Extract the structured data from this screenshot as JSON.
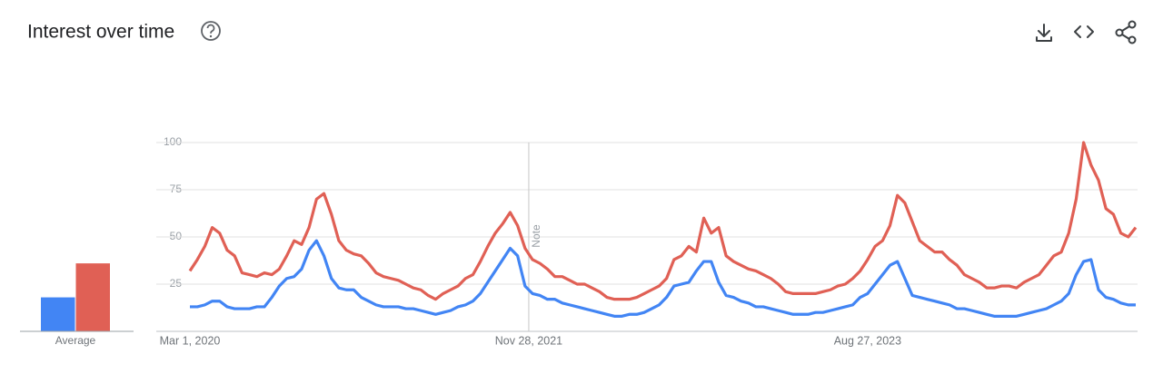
{
  "header": {
    "title": "Interest over time"
  },
  "chart_data": [
    {
      "type": "bar",
      "xlabel": "Average",
      "ylim": [
        0,
        100
      ],
      "series": [
        {
          "color": "#4285f4",
          "values": [
            18
          ]
        },
        {
          "color": "#e06055",
          "values": [
            36
          ]
        }
      ]
    },
    {
      "type": "line",
      "ylim": [
        0,
        100
      ],
      "yticks": [
        25,
        50,
        75,
        100
      ],
      "grid": true,
      "xticks": [
        {
          "value": "2020-03-01",
          "label": "Mar 1, 2020"
        },
        {
          "value": "2021-11-28",
          "label": "Nov 28, 2021"
        },
        {
          "value": "2023-08-27",
          "label": "Aug 27, 2023"
        }
      ],
      "annotations": [
        {
          "x": "2021-11-28",
          "label": "Note"
        }
      ],
      "x": [
        "2020-03-01",
        "2020-03-15",
        "2020-03-29",
        "2020-04-12",
        "2020-04-26",
        "2020-05-10",
        "2020-05-24",
        "2020-06-07",
        "2020-06-21",
        "2020-07-05",
        "2020-07-19",
        "2020-08-02",
        "2020-08-16",
        "2020-08-30",
        "2020-09-13",
        "2020-09-27",
        "2020-10-11",
        "2020-10-25",
        "2020-11-08",
        "2020-11-22",
        "2020-12-06",
        "2020-12-20",
        "2021-01-03",
        "2021-01-17",
        "2021-01-31",
        "2021-02-14",
        "2021-02-28",
        "2021-03-14",
        "2021-03-28",
        "2021-04-11",
        "2021-04-25",
        "2021-05-09",
        "2021-05-23",
        "2021-06-06",
        "2021-06-20",
        "2021-07-04",
        "2021-07-18",
        "2021-08-01",
        "2021-08-15",
        "2021-08-29",
        "2021-09-12",
        "2021-09-26",
        "2021-10-10",
        "2021-10-24",
        "2021-11-07",
        "2021-11-21",
        "2021-12-05",
        "2021-12-19",
        "2022-01-02",
        "2022-01-16",
        "2022-01-30",
        "2022-02-13",
        "2022-02-27",
        "2022-03-13",
        "2022-03-27",
        "2022-04-10",
        "2022-04-24",
        "2022-05-08",
        "2022-05-22",
        "2022-06-05",
        "2022-06-19",
        "2022-07-03",
        "2022-07-17",
        "2022-07-31",
        "2022-08-14",
        "2022-08-28",
        "2022-09-11",
        "2022-09-25",
        "2022-10-09",
        "2022-10-23",
        "2022-11-06",
        "2022-11-20",
        "2022-12-04",
        "2022-12-18",
        "2023-01-01",
        "2023-01-15",
        "2023-01-29",
        "2023-02-12",
        "2023-02-26",
        "2023-03-12",
        "2023-03-26",
        "2023-04-09",
        "2023-04-23",
        "2023-05-07",
        "2023-05-21",
        "2023-06-04",
        "2023-06-18",
        "2023-07-02",
        "2023-07-16",
        "2023-07-30",
        "2023-08-13",
        "2023-08-27",
        "2023-09-10",
        "2023-09-24",
        "2023-10-08",
        "2023-10-22",
        "2023-11-05",
        "2023-11-19",
        "2023-12-03",
        "2023-12-17",
        "2023-12-31",
        "2024-01-14",
        "2024-01-28",
        "2024-02-11",
        "2024-02-25",
        "2024-03-10",
        "2024-03-24",
        "2024-04-07",
        "2024-04-21",
        "2024-05-05",
        "2024-05-19",
        "2024-06-02",
        "2024-06-16",
        "2024-06-30",
        "2024-07-14",
        "2024-07-28",
        "2024-08-11",
        "2024-08-25",
        "2024-09-08",
        "2024-09-22",
        "2024-10-06",
        "2024-10-20",
        "2024-11-03",
        "2024-11-17",
        "2024-12-01",
        "2024-12-15",
        "2024-12-29",
        "2025-01-12"
      ],
      "series": [
        {
          "color": "#4285f4",
          "values": [
            13,
            13,
            14,
            16,
            16,
            13,
            12,
            12,
            12,
            13,
            13,
            18,
            24,
            28,
            29,
            33,
            43,
            48,
            40,
            28,
            23,
            22,
            22,
            18,
            16,
            14,
            13,
            13,
            13,
            12,
            12,
            11,
            10,
            9,
            10,
            11,
            13,
            14,
            16,
            20,
            26,
            32,
            38,
            44,
            40,
            24,
            20,
            19,
            17,
            17,
            15,
            14,
            13,
            12,
            11,
            10,
            9,
            8,
            8,
            9,
            9,
            10,
            12,
            14,
            18,
            24,
            25,
            26,
            32,
            37,
            37,
            26,
            19,
            18,
            16,
            15,
            13,
            13,
            12,
            11,
            10,
            9,
            9,
            9,
            10,
            10,
            11,
            12,
            13,
            14,
            18,
            20,
            25,
            30,
            35,
            37,
            28,
            19,
            18,
            17,
            16,
            15,
            14,
            12,
            12,
            11,
            10,
            9,
            8,
            8,
            8,
            8,
            9,
            10,
            11,
            12,
            14,
            16,
            20,
            30,
            37,
            38,
            22,
            18,
            17,
            15,
            14,
            14
          ]
        },
        {
          "color": "#e06055",
          "values": [
            32,
            38,
            45,
            55,
            52,
            43,
            40,
            31,
            30,
            29,
            31,
            30,
            33,
            40,
            48,
            46,
            55,
            70,
            73,
            62,
            48,
            43,
            41,
            40,
            36,
            31,
            29,
            28,
            27,
            25,
            23,
            22,
            19,
            17,
            20,
            22,
            24,
            28,
            30,
            37,
            45,
            52,
            57,
            63,
            56,
            44,
            38,
            36,
            33,
            29,
            29,
            27,
            25,
            25,
            23,
            21,
            18,
            17,
            17,
            17,
            18,
            20,
            22,
            24,
            28,
            38,
            40,
            45,
            42,
            60,
            52,
            55,
            40,
            37,
            35,
            33,
            32,
            30,
            28,
            25,
            21,
            20,
            20,
            20,
            20,
            21,
            22,
            24,
            25,
            28,
            32,
            38,
            45,
            48,
            56,
            72,
            68,
            58,
            48,
            45,
            42,
            42,
            38,
            35,
            30,
            28,
            26,
            23,
            23,
            24,
            24,
            23,
            26,
            28,
            30,
            35,
            40,
            42,
            52,
            70,
            100,
            88,
            80,
            65,
            62,
            52,
            50,
            55
          ]
        }
      ]
    }
  ]
}
